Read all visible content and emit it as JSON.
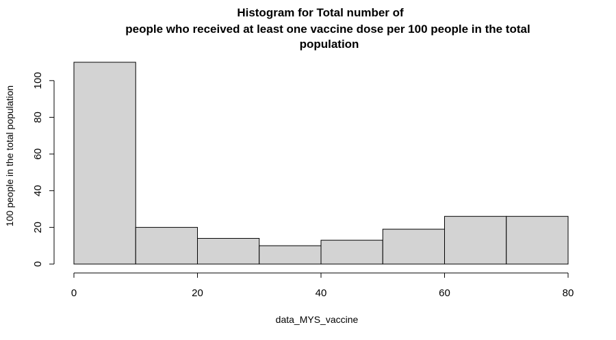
{
  "chart_data": {
    "type": "bar",
    "title_lines": [
      "Histogram for Total number of",
      "people who received at least one vaccine dose per 100 people in the total",
      "population"
    ],
    "xlabel": "data_MYS_vaccine",
    "ylabel": "100 people in the total population",
    "bins": [
      {
        "from": 0,
        "to": 10,
        "count": 110
      },
      {
        "from": 10,
        "to": 20,
        "count": 20
      },
      {
        "from": 20,
        "to": 30,
        "count": 14
      },
      {
        "from": 30,
        "to": 40,
        "count": 10
      },
      {
        "from": 40,
        "to": 50,
        "count": 13
      },
      {
        "from": 50,
        "to": 60,
        "count": 19
      },
      {
        "from": 60,
        "to": 70,
        "count": 26
      },
      {
        "from": 70,
        "to": 80,
        "count": 26
      }
    ],
    "xlim": [
      0,
      80
    ],
    "ylim": [
      0,
      110
    ],
    "xticks": [
      0,
      20,
      40,
      60,
      80
    ],
    "yticks": [
      0,
      20,
      40,
      60,
      80,
      100
    ],
    "bar_color": "#d3d3d3",
    "grid": false
  }
}
